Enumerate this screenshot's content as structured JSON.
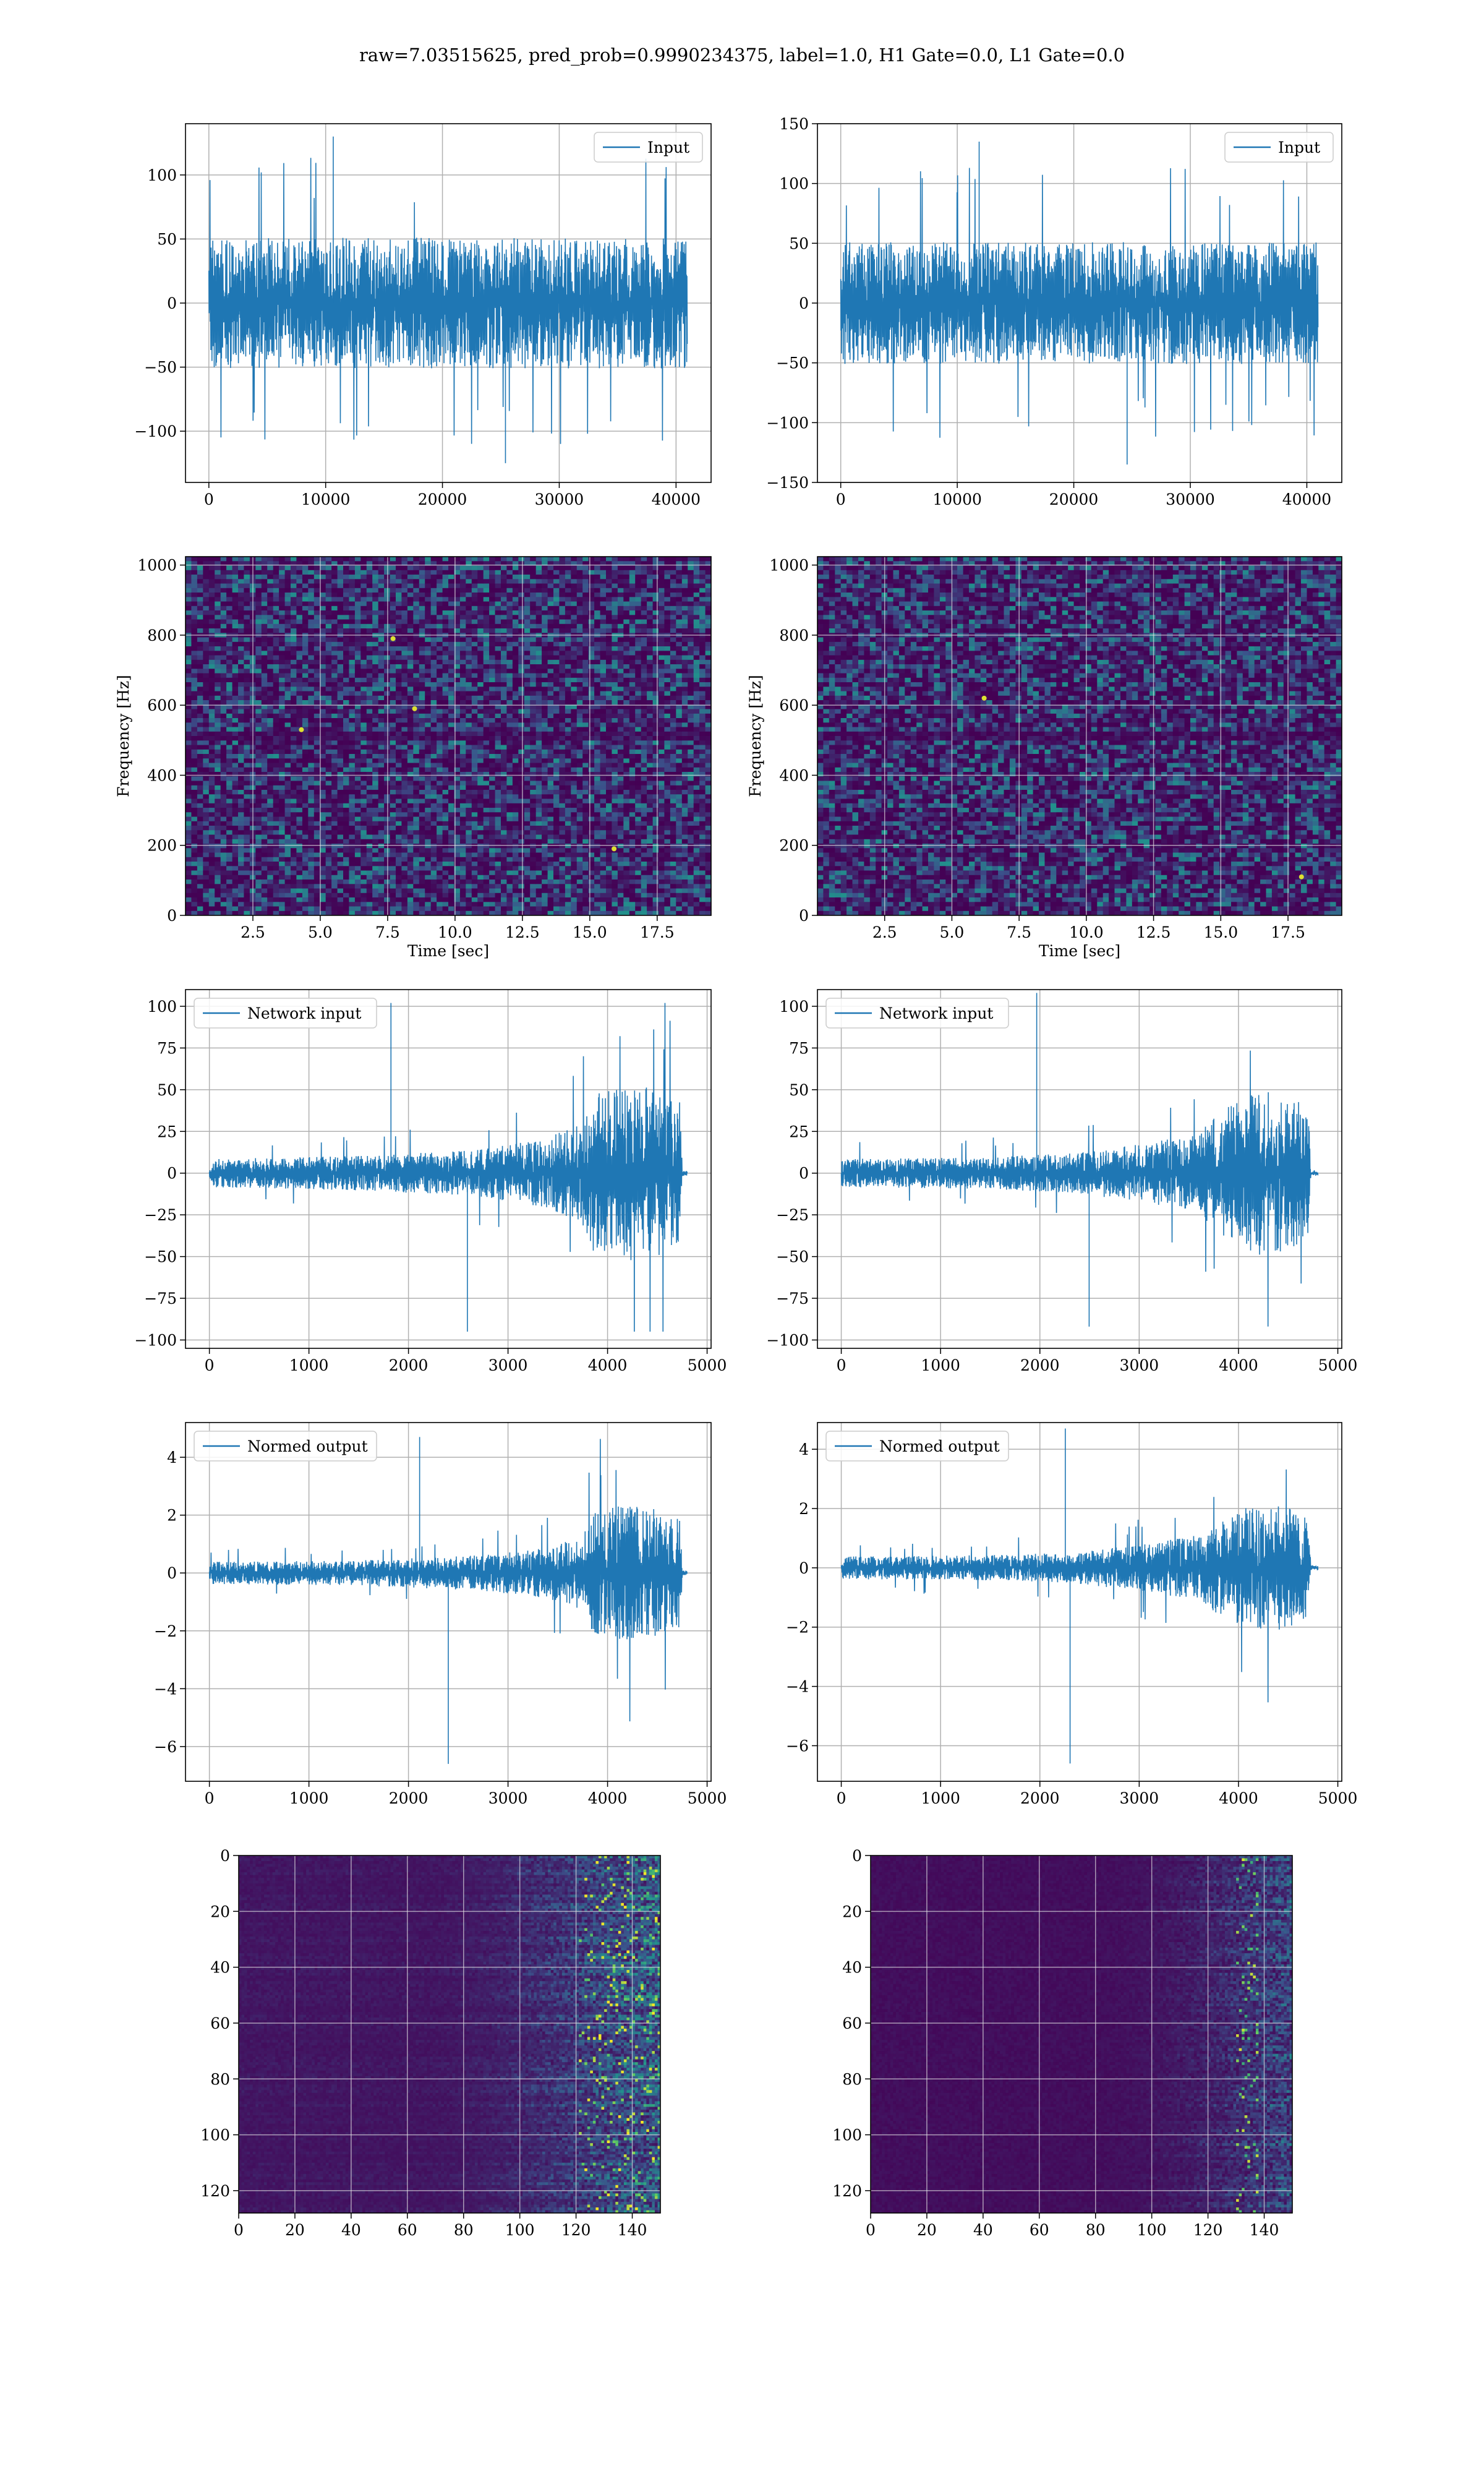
{
  "suptitle": "raw=7.03515625, pred_prob=0.9990234375, label=1.0, H1 Gate=0.0, L1 Gate=0.0",
  "colors": {
    "line": "#1f77b4",
    "grid": "#b0b0b0",
    "viridis_low": "#440154",
    "viridis_high": "#fde725"
  },
  "chart_data": [
    {
      "id": "input-h1",
      "type": "line",
      "legend": "Input",
      "legend_loc": "upper right",
      "grid": true,
      "xlim": [
        -2000,
        43000
      ],
      "ylim": [
        -140,
        140
      ],
      "xticks": [
        0,
        10000,
        20000,
        30000,
        40000
      ],
      "xtick_labels": [
        "0",
        "10000",
        "20000",
        "30000",
        "40000"
      ],
      "yticks": [
        -100,
        -50,
        0,
        50,
        100
      ],
      "ytick_labels": [
        "−100",
        "−50",
        "0",
        "50",
        "100"
      ],
      "signal": {
        "x_range": [
          0,
          40960
        ],
        "envelope": [
          [
            0,
            60
          ],
          [
            1,
            60
          ]
        ],
        "spike_max": 130,
        "spike_min": -125
      }
    },
    {
      "id": "input-l1",
      "type": "line",
      "legend": "Input",
      "legend_loc": "upper right",
      "grid": true,
      "xlim": [
        -2000,
        43000
      ],
      "ylim": [
        -150,
        150
      ],
      "xticks": [
        0,
        10000,
        20000,
        30000,
        40000
      ],
      "xtick_labels": [
        "0",
        "10000",
        "20000",
        "30000",
        "40000"
      ],
      "yticks": [
        -150,
        -100,
        -50,
        0,
        50,
        100,
        150
      ],
      "ytick_labels": [
        "−150",
        "−100",
        "−50",
        "0",
        "50",
        "100",
        "150"
      ],
      "signal": {
        "x_range": [
          0,
          40960
        ],
        "envelope": [
          [
            0,
            60
          ],
          [
            1,
            60
          ]
        ],
        "spike_max": 135,
        "spike_min": -135
      }
    },
    {
      "id": "spec-h1",
      "type": "heatmap",
      "grid": true,
      "xlabel": "Time [sec]",
      "ylabel": "Frequency [Hz]",
      "xlim": [
        0,
        19.5
      ],
      "ylim": [
        0,
        1024
      ],
      "xticks": [
        2.5,
        5,
        7.5,
        10,
        12.5,
        15,
        17.5
      ],
      "xtick_labels": [
        "2.5",
        "5.0",
        "7.5",
        "10.0",
        "12.5",
        "15.0",
        "17.5"
      ],
      "yticks": [
        0,
        200,
        400,
        600,
        800,
        1000
      ],
      "ytick_labels": [
        "0",
        "200",
        "400",
        "600",
        "800",
        "1000"
      ]
    },
    {
      "id": "spec-l1",
      "type": "heatmap",
      "grid": true,
      "xlabel": "Time [sec]",
      "ylabel": "Frequency [Hz]",
      "xlim": [
        0,
        19.5
      ],
      "ylim": [
        0,
        1024
      ],
      "xticks": [
        2.5,
        5,
        7.5,
        10,
        12.5,
        15,
        17.5
      ],
      "xtick_labels": [
        "2.5",
        "5.0",
        "7.5",
        "10.0",
        "12.5",
        "15.0",
        "17.5"
      ],
      "yticks": [
        0,
        200,
        400,
        600,
        800,
        1000
      ],
      "ytick_labels": [
        "0",
        "200",
        "400",
        "600",
        "800",
        "1000"
      ]
    },
    {
      "id": "net-h1",
      "type": "line",
      "legend": "Network input",
      "legend_loc": "upper left",
      "grid": true,
      "xlim": [
        -240,
        5040
      ],
      "ylim": [
        -105,
        110
      ],
      "xticks": [
        0,
        1000,
        2000,
        3000,
        4000,
        5000
      ],
      "xtick_labels": [
        "0",
        "1000",
        "2000",
        "3000",
        "4000",
        "5000"
      ],
      "yticks": [
        -100,
        -75,
        -50,
        -25,
        0,
        25,
        50,
        75,
        100
      ],
      "ytick_labels": [
        "−100",
        "−75",
        "−50",
        "−25",
        "0",
        "25",
        "50",
        "75",
        "100"
      ],
      "signal": {
        "x_range": [
          0,
          4800
        ],
        "envelope": [
          [
            0,
            10
          ],
          [
            0.3,
            12
          ],
          [
            0.55,
            16
          ],
          [
            0.7,
            24
          ],
          [
            0.78,
            35
          ],
          [
            0.8,
            55
          ],
          [
            0.87,
            62
          ],
          [
            0.93,
            60
          ],
          [
            0.985,
            50
          ],
          [
            0.99,
            2
          ],
          [
            1,
            2
          ]
        ],
        "spike_max": 102,
        "spike_min": -95
      }
    },
    {
      "id": "net-l1",
      "type": "line",
      "legend": "Network input",
      "legend_loc": "upper left",
      "grid": true,
      "xlim": [
        -240,
        5040
      ],
      "ylim": [
        -105,
        110
      ],
      "xticks": [
        0,
        1000,
        2000,
        3000,
        4000,
        5000
      ],
      "xtick_labels": [
        "0",
        "1000",
        "2000",
        "3000",
        "4000",
        "5000"
      ],
      "yticks": [
        -100,
        -75,
        -50,
        -25,
        0,
        25,
        50,
        75,
        100
      ],
      "ytick_labels": [
        "−100",
        "−75",
        "−50",
        "−25",
        "0",
        "25",
        "50",
        "75",
        "100"
      ],
      "signal": {
        "x_range": [
          0,
          4800
        ],
        "envelope": [
          [
            0,
            10
          ],
          [
            0.3,
            11
          ],
          [
            0.48,
            14
          ],
          [
            0.62,
            20
          ],
          [
            0.75,
            28
          ],
          [
            0.8,
            45
          ],
          [
            0.88,
            58
          ],
          [
            0.94,
            55
          ],
          [
            0.98,
            45
          ],
          [
            0.985,
            2
          ],
          [
            1,
            2
          ]
        ],
        "spike_max": 108,
        "spike_min": -92
      }
    },
    {
      "id": "norm-h1",
      "type": "line",
      "legend": "Normed output",
      "legend_loc": "upper left",
      "grid": true,
      "xlim": [
        -240,
        5040
      ],
      "ylim": [
        -7.2,
        5.2
      ],
      "xticks": [
        0,
        1000,
        2000,
        3000,
        4000,
        5000
      ],
      "xtick_labels": [
        "0",
        "1000",
        "2000",
        "3000",
        "4000",
        "5000"
      ],
      "yticks": [
        -6,
        -4,
        -2,
        0,
        2,
        4
      ],
      "ytick_labels": [
        "−6",
        "−4",
        "−2",
        "0",
        "2",
        "4"
      ],
      "signal": {
        "x_range": [
          0,
          4800
        ],
        "envelope": [
          [
            0,
            0.45
          ],
          [
            0.3,
            0.5
          ],
          [
            0.55,
            0.7
          ],
          [
            0.7,
            1.0
          ],
          [
            0.78,
            1.5
          ],
          [
            0.8,
            2.4
          ],
          [
            0.87,
            2.8
          ],
          [
            0.93,
            2.6
          ],
          [
            0.985,
            2.2
          ],
          [
            0.99,
            0.1
          ],
          [
            1,
            0.1
          ]
        ],
        "spike_max": 4.7,
        "spike_min": -6.6
      }
    },
    {
      "id": "norm-l1",
      "type": "line",
      "legend": "Normed output",
      "legend_loc": "upper left",
      "grid": true,
      "xlim": [
        -240,
        5040
      ],
      "ylim": [
        -7.2,
        4.9
      ],
      "xticks": [
        0,
        1000,
        2000,
        3000,
        4000,
        5000
      ],
      "xtick_labels": [
        "0",
        "1000",
        "2000",
        "3000",
        "4000",
        "5000"
      ],
      "yticks": [
        -6,
        -4,
        -2,
        0,
        2,
        4
      ],
      "ytick_labels": [
        "−6",
        "−4",
        "−2",
        "0",
        "2",
        "4"
      ],
      "signal": {
        "x_range": [
          0,
          4800
        ],
        "envelope": [
          [
            0,
            0.45
          ],
          [
            0.3,
            0.5
          ],
          [
            0.48,
            0.6
          ],
          [
            0.62,
            0.9
          ],
          [
            0.75,
            1.3
          ],
          [
            0.8,
            2.0
          ],
          [
            0.88,
            2.6
          ],
          [
            0.94,
            2.4
          ],
          [
            0.98,
            2.0
          ],
          [
            0.985,
            0.1
          ],
          [
            1,
            0.1
          ]
        ],
        "spike_max": 4.7,
        "spike_min": -6.6
      }
    },
    {
      "id": "feat-h1",
      "type": "heatmap",
      "grid": true,
      "xlim": [
        0,
        150
      ],
      "ylim": [
        128,
        0
      ],
      "xticks": [
        0,
        20,
        40,
        60,
        80,
        100,
        120,
        140
      ],
      "xtick_labels": [
        "0",
        "20",
        "40",
        "60",
        "80",
        "100",
        "120",
        "140"
      ],
      "yticks": [
        0,
        20,
        40,
        60,
        80,
        100,
        120
      ],
      "ytick_labels": [
        "0",
        "20",
        "40",
        "60",
        "80",
        "100",
        "120"
      ]
    },
    {
      "id": "feat-l1",
      "type": "heatmap",
      "grid": true,
      "xlim": [
        0,
        150
      ],
      "ylim": [
        128,
        0
      ],
      "xticks": [
        0,
        20,
        40,
        60,
        80,
        100,
        120,
        140
      ],
      "xtick_labels": [
        "0",
        "20",
        "40",
        "60",
        "80",
        "100",
        "120",
        "140"
      ],
      "yticks": [
        0,
        20,
        40,
        60,
        80,
        100,
        120
      ],
      "ytick_labels": [
        "0",
        "20",
        "40",
        "60",
        "80",
        "100",
        "120"
      ]
    }
  ]
}
